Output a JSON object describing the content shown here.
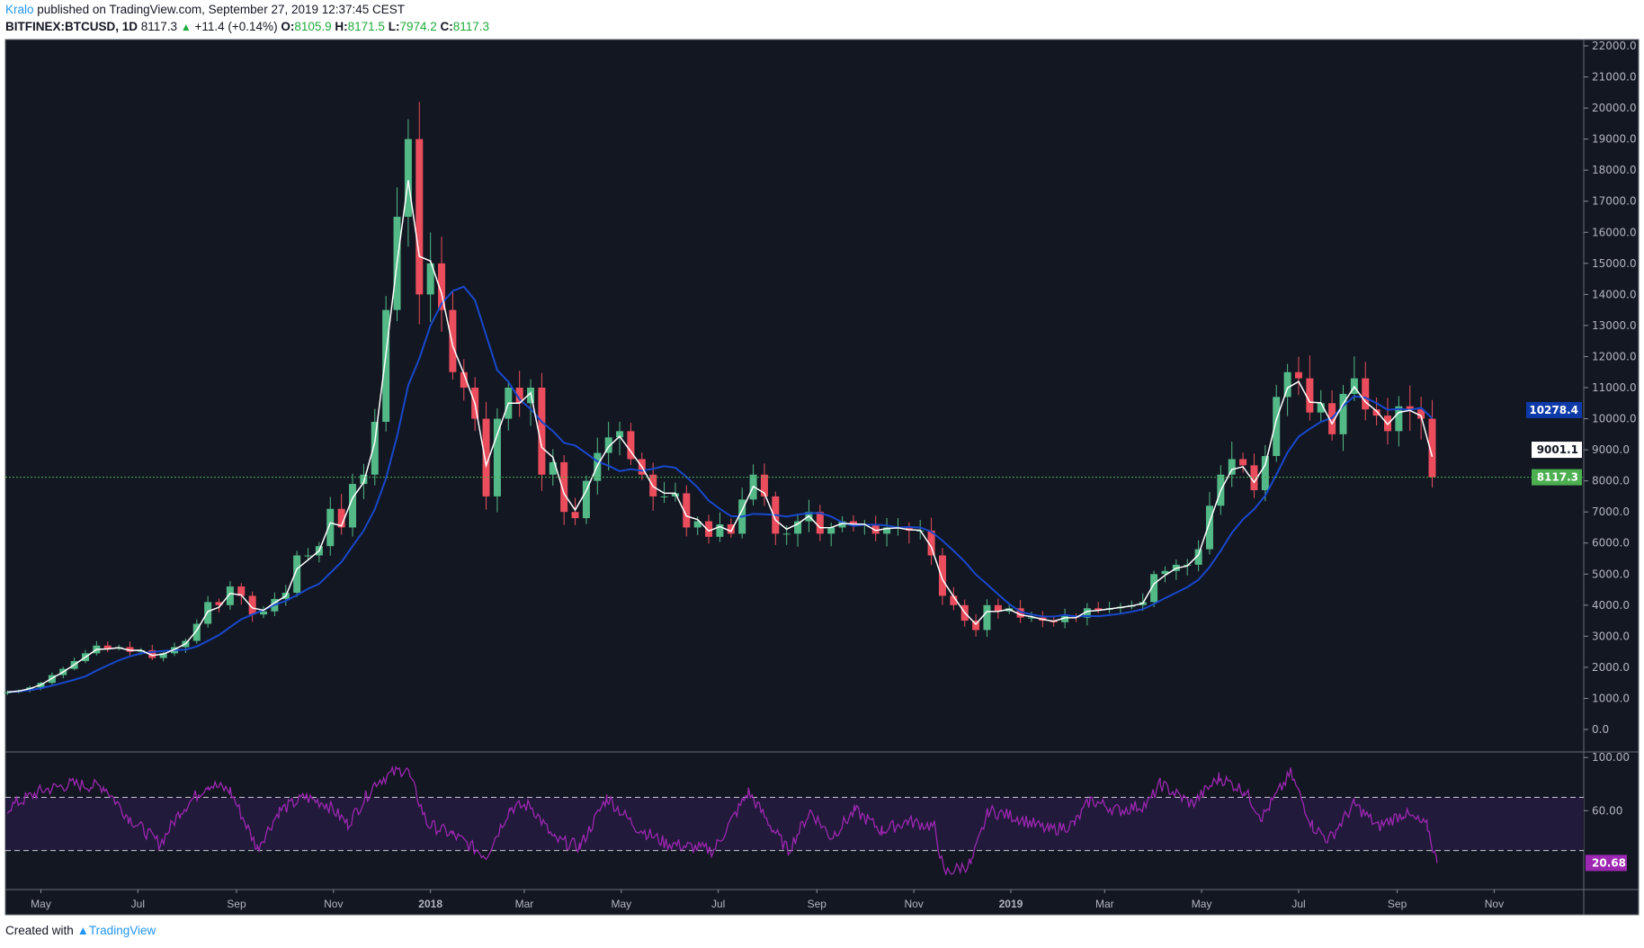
{
  "header": {
    "author": "Kralo",
    "published": "published on TradingView.com, September 27, 2019 12:37:45 CEST",
    "symbol": "BITFINEX:BTCUSD, 1D",
    "last": "8117.3",
    "change": "+11.4 (+0.14%)",
    "o_label": "O:",
    "o": "8105.9",
    "h_label": "H:",
    "h": "8171.5",
    "l_label": "L:",
    "l": "7974.2",
    "c_label": "C:",
    "c": "8117.3"
  },
  "footer": {
    "created_with": "Created with",
    "brand": "TradingView"
  },
  "colors": {
    "background": "#131722",
    "up": "#53b987",
    "down": "#eb4d5c",
    "ma_fast": "#ffffff",
    "ma_slow": "#1848cc",
    "rsi": "#9c27b0",
    "last_price": "#4caf50"
  },
  "chart_data": {
    "type": "candlestick",
    "price_axis": {
      "range": [
        0,
        22000
      ],
      "ticks": [
        "0.0",
        "1000.0",
        "2000.0",
        "3000.0",
        "4000.0",
        "5000.0",
        "6000.0",
        "7000.0",
        "8000.0",
        "9000.0",
        "10000.0",
        "11000.0",
        "12000.0",
        "13000.0",
        "14000.0",
        "15000.0",
        "16000.0",
        "17000.0",
        "18000.0",
        "19000.0",
        "20000.0",
        "21000.0",
        "22000.0"
      ]
    },
    "time_axis": {
      "ticks": [
        [
          "2017-05-01",
          "May"
        ],
        [
          "2017-07-01",
          "Jul"
        ],
        [
          "2017-09-01",
          "Sep"
        ],
        [
          "2017-11-01",
          "Nov"
        ],
        [
          "2018-01-01",
          "2018"
        ],
        [
          "2018-03-01",
          "Mar"
        ],
        [
          "2018-05-01",
          "May"
        ],
        [
          "2018-07-01",
          "Jul"
        ],
        [
          "2018-09-01",
          "Sep"
        ],
        [
          "2018-11-01",
          "Nov"
        ],
        [
          "2019-01-01",
          "2019"
        ],
        [
          "2019-03-01",
          "Mar"
        ],
        [
          "2019-05-01",
          "May"
        ],
        [
          "2019-07-01",
          "Jul"
        ],
        [
          "2019-09-01",
          "Sep"
        ],
        [
          "2019-11-01",
          "Nov"
        ]
      ]
    },
    "start_date": "2017-04-10",
    "weekly_close": [
      1200,
      1250,
      1350,
      1500,
      1750,
      1950,
      2200,
      2450,
      2700,
      2600,
      2650,
      2500,
      2550,
      2300,
      2450,
      2650,
      2850,
      3400,
      4100,
      4000,
      4600,
      4300,
      3700,
      3800,
      4200,
      4400,
      5600,
      5600,
      5900,
      7100,
      6500,
      7900,
      8200,
      9900,
      13500,
      16500,
      19000,
      14000,
      15000,
      13500,
      11500,
      11000,
      10000,
      7500,
      10000,
      11000,
      10500,
      11000,
      8200,
      8600,
      7000,
      6800,
      8000,
      8900,
      9400,
      9600,
      8700,
      8200,
      7500,
      7500,
      7600,
      6500,
      6700,
      6200,
      6600,
      6300,
      7400,
      8200,
      7500,
      6300,
      6300,
      6700,
      7000,
      6300,
      6500,
      6700,
      6600,
      6600,
      6300,
      6500,
      6500,
      6400,
      6400,
      5600,
      4300,
      4000,
      3500,
      3200,
      4000,
      3800,
      3900,
      3600,
      3600,
      3500,
      3450,
      3650,
      3600,
      3900,
      3850,
      3900,
      3950,
      4000,
      4100,
      5000,
      5100,
      5300,
      5300,
      5800,
      7200,
      8200,
      8700,
      8500,
      7700,
      8800,
      10700,
      11500,
      11300,
      10200,
      10500,
      9500,
      10800,
      11300,
      10300,
      10100,
      9600,
      10400,
      10300,
      10000,
      8117.3
    ],
    "last_price": 8117.3,
    "ma_slow_last": "10278.4",
    "ma_fast_last": "9001.1",
    "last_label": "8117.3",
    "rsi": {
      "range": [
        0,
        100
      ],
      "bands": [
        70,
        30
      ],
      "ticks": [
        "100.00",
        "60.00"
      ],
      "last": "20.68",
      "points": [
        [
          "2017-04-10",
          62
        ],
        [
          "2017-05-01",
          75
        ],
        [
          "2017-05-20",
          80
        ],
        [
          "2017-06-10",
          78
        ],
        [
          "2017-06-25",
          55
        ],
        [
          "2017-07-15",
          35
        ],
        [
          "2017-07-28",
          60
        ],
        [
          "2017-08-14",
          80
        ],
        [
          "2017-08-28",
          75
        ],
        [
          "2017-09-14",
          32
        ],
        [
          "2017-09-28",
          60
        ],
        [
          "2017-10-14",
          70
        ],
        [
          "2017-10-28",
          65
        ],
        [
          "2017-11-10",
          50
        ],
        [
          "2017-11-28",
          82
        ],
        [
          "2017-12-08",
          88
        ],
        [
          "2017-12-17",
          92
        ],
        [
          "2017-12-30",
          50
        ],
        [
          "2018-01-15",
          42
        ],
        [
          "2018-02-05",
          26
        ],
        [
          "2018-02-20",
          62
        ],
        [
          "2018-03-05",
          64
        ],
        [
          "2018-03-20",
          38
        ],
        [
          "2018-04-05",
          33
        ],
        [
          "2018-04-22",
          70
        ],
        [
          "2018-05-10",
          48
        ],
        [
          "2018-05-28",
          36
        ],
        [
          "2018-06-12",
          33
        ],
        [
          "2018-06-28",
          30
        ],
        [
          "2018-07-20",
          74
        ],
        [
          "2018-08-05",
          45
        ],
        [
          "2018-08-14",
          30
        ],
        [
          "2018-08-28",
          60
        ],
        [
          "2018-09-10",
          40
        ],
        [
          "2018-09-25",
          60
        ],
        [
          "2018-10-12",
          45
        ],
        [
          "2018-10-28",
          52
        ],
        [
          "2018-11-14",
          48
        ],
        [
          "2018-11-20",
          13
        ],
        [
          "2018-12-07",
          20
        ],
        [
          "2018-12-18",
          60
        ],
        [
          "2019-01-05",
          55
        ],
        [
          "2019-01-25",
          45
        ],
        [
          "2019-02-10",
          50
        ],
        [
          "2019-02-20",
          68
        ],
        [
          "2019-03-10",
          60
        ],
        [
          "2019-03-28",
          65
        ],
        [
          "2019-04-05",
          80
        ],
        [
          "2019-04-25",
          65
        ],
        [
          "2019-05-12",
          85
        ],
        [
          "2019-05-28",
          75
        ],
        [
          "2019-06-08",
          55
        ],
        [
          "2019-06-26",
          88
        ],
        [
          "2019-07-10",
          48
        ],
        [
          "2019-07-20",
          38
        ],
        [
          "2019-08-05",
          65
        ],
        [
          "2019-08-20",
          48
        ],
        [
          "2019-09-05",
          58
        ],
        [
          "2019-09-20",
          48
        ],
        [
          "2019-09-26",
          20.68
        ]
      ]
    }
  }
}
